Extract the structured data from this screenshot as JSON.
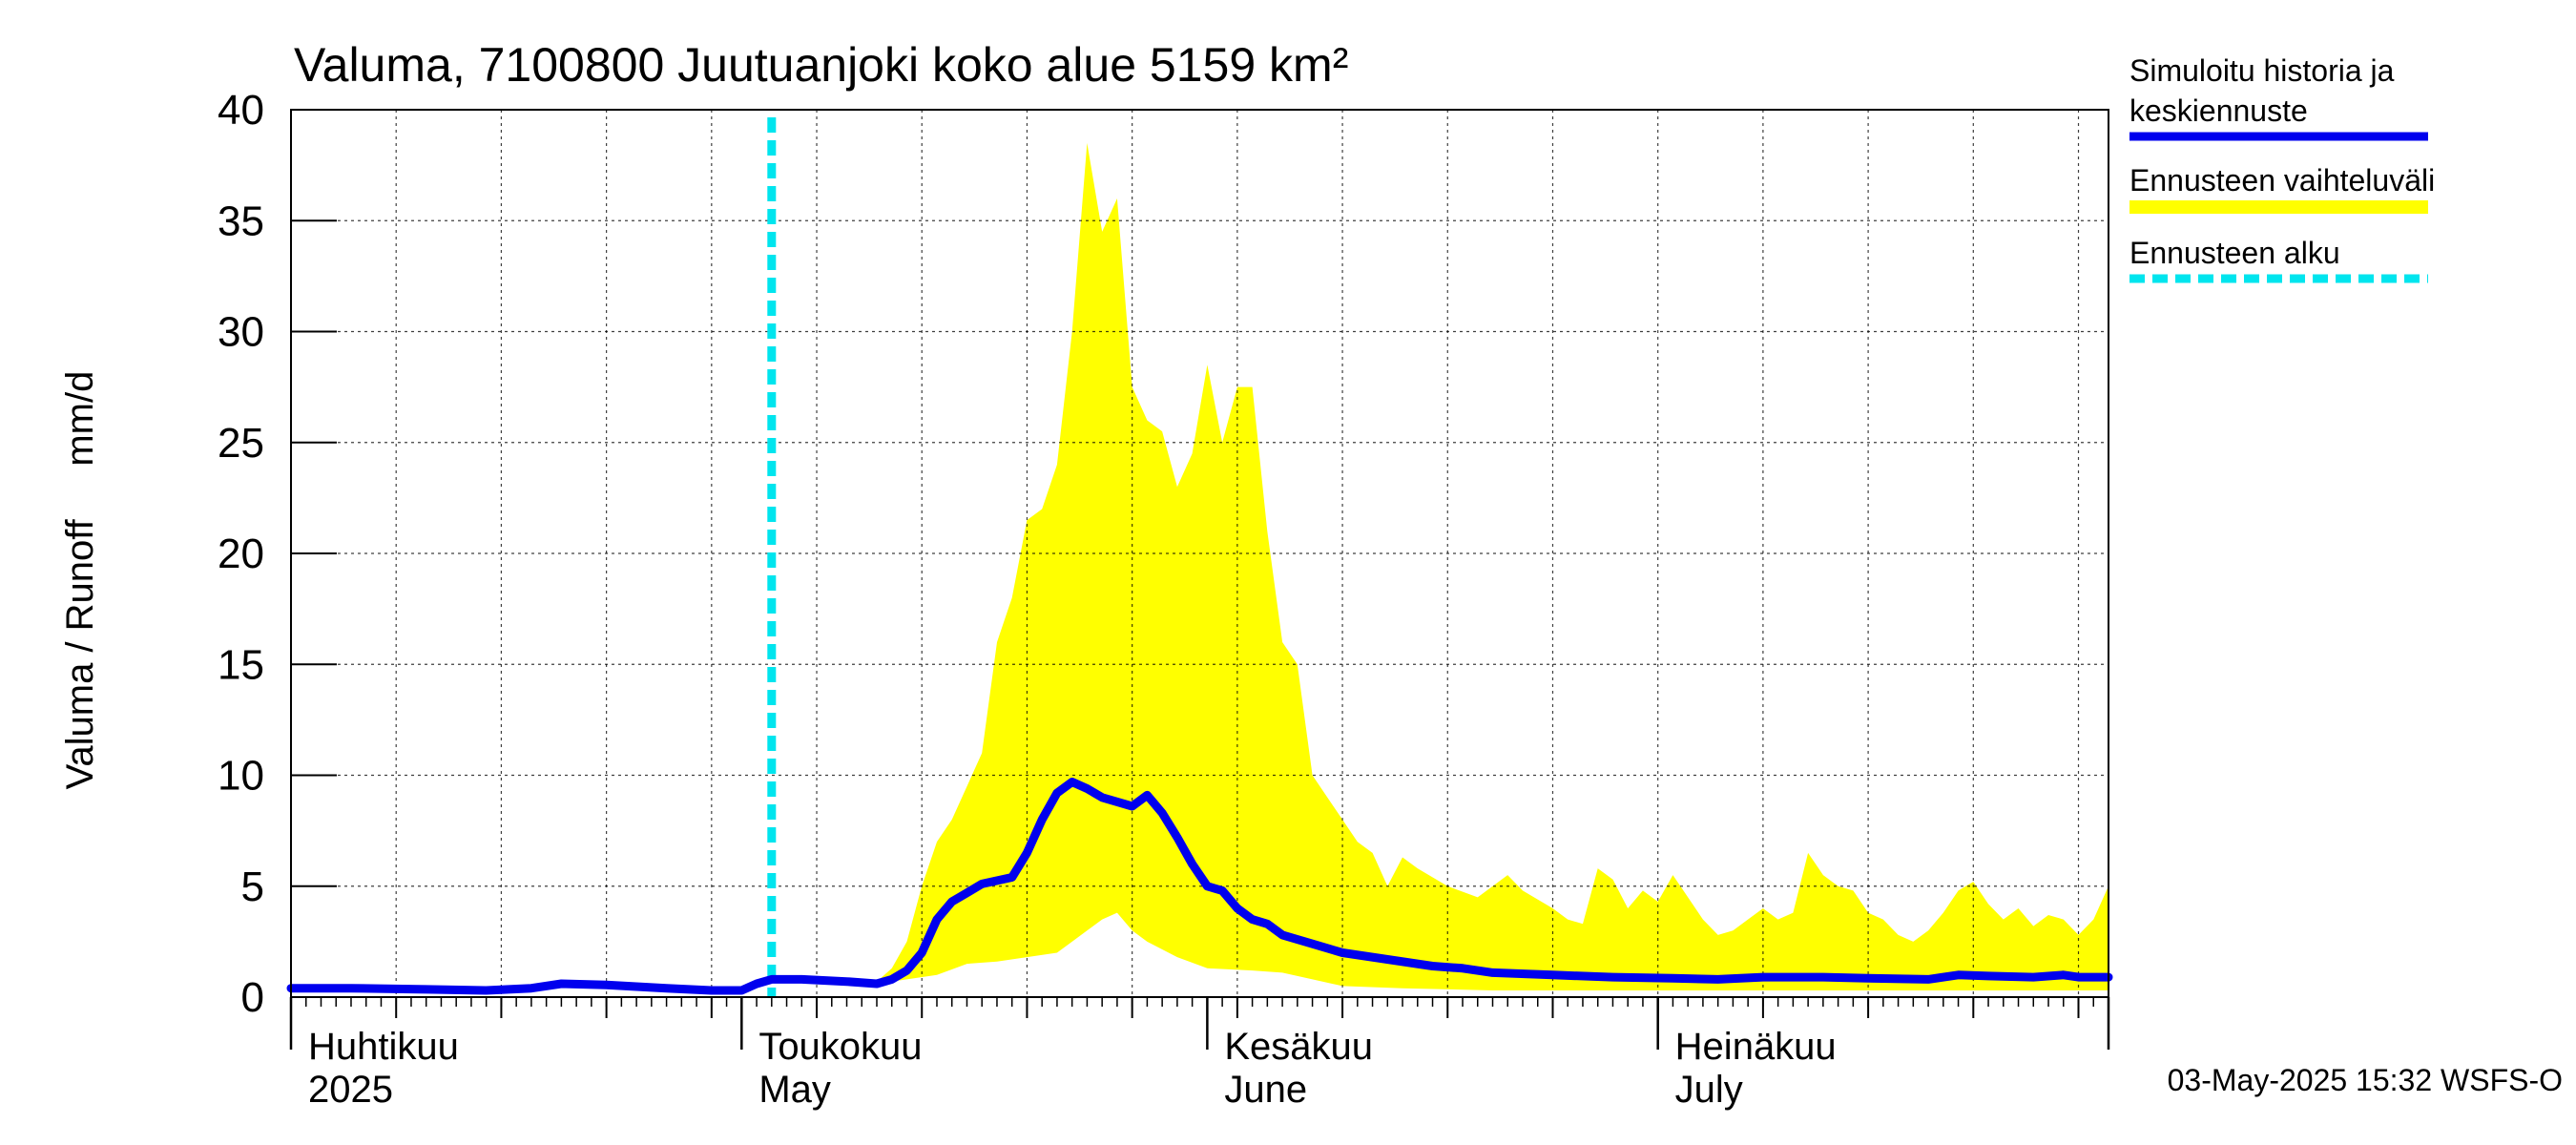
{
  "chart_data": {
    "type": "area",
    "title": "Valuma, 7100800 Juutuanjoki koko alue 5159 km²",
    "ylabel": "Valuma / Runoff     mm/d",
    "xlabel": "",
    "ylim": [
      0,
      40
    ],
    "xlim": [
      "2025-04-01",
      "2025-07-31"
    ],
    "grid": true,
    "legend_position": "right",
    "yticks": [
      0,
      5,
      10,
      15,
      20,
      25,
      30,
      35,
      40
    ],
    "month_labels": [
      {
        "date": "2025-04-01",
        "line1": "Huhtikuu",
        "line2": "2025"
      },
      {
        "date": "2025-05-01",
        "line1": "Toukokuu",
        "line2": "May"
      },
      {
        "date": "2025-06-01",
        "line1": "Kesäkuu",
        "line2": "June"
      },
      {
        "date": "2025-07-01",
        "line1": "Heinäkuu",
        "line2": "July"
      }
    ],
    "forecast_start": "2025-05-03",
    "footer": "03-May-2025 15:32 WSFS-O",
    "legend": [
      {
        "label_line1": "Simuloitu historia ja",
        "label_line2": "keskiennuste",
        "color": "#0000ee",
        "style": "solid"
      },
      {
        "label_line1": "Ennusteen vaihteluväli",
        "label_line2": "",
        "color": "#ffff00",
        "style": "band"
      },
      {
        "label_line1": "Ennusteen alku",
        "label_line2": "",
        "color": "#00e5ee",
        "style": "dashed"
      }
    ],
    "series": [
      {
        "name": "Simuloitu historia ja keskiennuste",
        "color": "#0000ee",
        "points": [
          [
            "2025-04-01",
            0.4
          ],
          [
            "2025-04-05",
            0.4
          ],
          [
            "2025-04-10",
            0.35
          ],
          [
            "2025-04-14",
            0.3
          ],
          [
            "2025-04-17",
            0.4
          ],
          [
            "2025-04-19",
            0.6
          ],
          [
            "2025-04-22",
            0.55
          ],
          [
            "2025-04-26",
            0.4
          ],
          [
            "2025-04-29",
            0.3
          ],
          [
            "2025-05-01",
            0.3
          ],
          [
            "2025-05-02",
            0.6
          ],
          [
            "2025-05-03",
            0.8
          ],
          [
            "2025-05-05",
            0.8
          ],
          [
            "2025-05-08",
            0.7
          ],
          [
            "2025-05-10",
            0.6
          ],
          [
            "2025-05-11",
            0.8
          ],
          [
            "2025-05-12",
            1.2
          ],
          [
            "2025-05-13",
            2.0
          ],
          [
            "2025-05-14",
            3.5
          ],
          [
            "2025-05-15",
            4.3
          ],
          [
            "2025-05-16",
            4.7
          ],
          [
            "2025-05-17",
            5.1
          ],
          [
            "2025-05-19",
            5.4
          ],
          [
            "2025-05-20",
            6.5
          ],
          [
            "2025-05-21",
            8.0
          ],
          [
            "2025-05-22",
            9.2
          ],
          [
            "2025-05-23",
            9.7
          ],
          [
            "2025-05-24",
            9.4
          ],
          [
            "2025-05-25",
            9.0
          ],
          [
            "2025-05-27",
            8.6
          ],
          [
            "2025-05-28",
            9.1
          ],
          [
            "2025-05-29",
            8.3
          ],
          [
            "2025-05-30",
            7.2
          ],
          [
            "2025-05-31",
            6.0
          ],
          [
            "2025-06-01",
            5.0
          ],
          [
            "2025-06-02",
            4.8
          ],
          [
            "2025-06-03",
            4.0
          ],
          [
            "2025-06-04",
            3.5
          ],
          [
            "2025-06-05",
            3.3
          ],
          [
            "2025-06-06",
            2.8
          ],
          [
            "2025-06-08",
            2.4
          ],
          [
            "2025-06-10",
            2.0
          ],
          [
            "2025-06-13",
            1.7
          ],
          [
            "2025-06-16",
            1.4
          ],
          [
            "2025-06-18",
            1.3
          ],
          [
            "2025-06-20",
            1.1
          ],
          [
            "2025-06-24",
            1.0
          ],
          [
            "2025-06-28",
            0.9
          ],
          [
            "2025-07-02",
            0.85
          ],
          [
            "2025-07-05",
            0.8
          ],
          [
            "2025-07-08",
            0.9
          ],
          [
            "2025-07-12",
            0.9
          ],
          [
            "2025-07-15",
            0.85
          ],
          [
            "2025-07-19",
            0.8
          ],
          [
            "2025-07-21",
            1.0
          ],
          [
            "2025-07-23",
            0.95
          ],
          [
            "2025-07-26",
            0.9
          ],
          [
            "2025-07-28",
            1.0
          ],
          [
            "2025-07-29",
            0.9
          ],
          [
            "2025-07-31",
            0.9
          ]
        ]
      },
      {
        "name": "Ennusteen vaihteluväli (yläraja)",
        "color": "#ffff00",
        "points": [
          [
            "2025-05-03",
            0.8
          ],
          [
            "2025-05-06",
            0.8
          ],
          [
            "2025-05-08",
            0.75
          ],
          [
            "2025-05-10",
            0.7
          ],
          [
            "2025-05-11",
            1.3
          ],
          [
            "2025-05-12",
            2.5
          ],
          [
            "2025-05-13",
            5.0
          ],
          [
            "2025-05-14",
            7.0
          ],
          [
            "2025-05-15",
            8.0
          ],
          [
            "2025-05-16",
            9.5
          ],
          [
            "2025-05-17",
            11.0
          ],
          [
            "2025-05-18",
            16.0
          ],
          [
            "2025-05-19",
            18.0
          ],
          [
            "2025-05-20",
            21.5
          ],
          [
            "2025-05-21",
            22.0
          ],
          [
            "2025-05-22",
            24.0
          ],
          [
            "2025-05-23",
            30.0
          ],
          [
            "2025-05-24",
            38.5
          ],
          [
            "2025-05-25",
            34.5
          ],
          [
            "2025-05-26",
            36.0
          ],
          [
            "2025-05-27",
            27.5
          ],
          [
            "2025-05-28",
            26.0
          ],
          [
            "2025-05-29",
            25.5
          ],
          [
            "2025-05-30",
            23.0
          ],
          [
            "2025-05-31",
            24.5
          ],
          [
            "2025-06-01",
            28.5
          ],
          [
            "2025-06-02",
            25.0
          ],
          [
            "2025-06-03",
            27.5
          ],
          [
            "2025-06-04",
            27.5
          ],
          [
            "2025-06-05",
            21.0
          ],
          [
            "2025-06-06",
            16.0
          ],
          [
            "2025-06-07",
            15.0
          ],
          [
            "2025-06-08",
            10.0
          ],
          [
            "2025-06-09",
            9.0
          ],
          [
            "2025-06-10",
            8.0
          ],
          [
            "2025-06-11",
            7.0
          ],
          [
            "2025-06-12",
            6.5
          ],
          [
            "2025-06-13",
            5.0
          ],
          [
            "2025-06-14",
            6.3
          ],
          [
            "2025-06-15",
            5.8
          ],
          [
            "2025-06-17",
            5.0
          ],
          [
            "2025-06-19",
            4.5
          ],
          [
            "2025-06-20",
            5.0
          ],
          [
            "2025-06-21",
            5.5
          ],
          [
            "2025-06-22",
            4.8
          ],
          [
            "2025-06-24",
            4.0
          ],
          [
            "2025-06-25",
            3.5
          ],
          [
            "2025-06-26",
            3.3
          ],
          [
            "2025-06-27",
            5.8
          ],
          [
            "2025-06-28",
            5.3
          ],
          [
            "2025-06-29",
            4.0
          ],
          [
            "2025-06-30",
            4.8
          ],
          [
            "2025-07-01",
            4.3
          ],
          [
            "2025-07-02",
            5.5
          ],
          [
            "2025-07-03",
            4.5
          ],
          [
            "2025-07-04",
            3.5
          ],
          [
            "2025-07-05",
            2.8
          ],
          [
            "2025-07-06",
            3.0
          ],
          [
            "2025-07-07",
            3.5
          ],
          [
            "2025-07-08",
            4.0
          ],
          [
            "2025-07-09",
            3.5
          ],
          [
            "2025-07-10",
            3.8
          ],
          [
            "2025-07-11",
            6.5
          ],
          [
            "2025-07-12",
            5.5
          ],
          [
            "2025-07-13",
            5.0
          ],
          [
            "2025-07-14",
            4.8
          ],
          [
            "2025-07-15",
            3.8
          ],
          [
            "2025-07-16",
            3.5
          ],
          [
            "2025-07-17",
            2.8
          ],
          [
            "2025-07-18",
            2.5
          ],
          [
            "2025-07-19",
            3.0
          ],
          [
            "2025-07-20",
            3.8
          ],
          [
            "2025-07-21",
            4.8
          ],
          [
            "2025-07-22",
            5.2
          ],
          [
            "2025-07-23",
            4.2
          ],
          [
            "2025-07-24",
            3.5
          ],
          [
            "2025-07-25",
            4.0
          ],
          [
            "2025-07-26",
            3.2
          ],
          [
            "2025-07-27",
            3.7
          ],
          [
            "2025-07-28",
            3.5
          ],
          [
            "2025-07-29",
            2.8
          ],
          [
            "2025-07-30",
            3.5
          ],
          [
            "2025-07-31",
            5.0
          ]
        ]
      },
      {
        "name": "Ennusteen vaihteluväli (alaraja)",
        "color": "#ffff00",
        "points": [
          [
            "2025-05-03",
            0.8
          ],
          [
            "2025-05-06",
            0.8
          ],
          [
            "2025-05-08",
            0.7
          ],
          [
            "2025-05-10",
            0.6
          ],
          [
            "2025-05-12",
            0.8
          ],
          [
            "2025-05-14",
            1.0
          ],
          [
            "2025-05-16",
            1.5
          ],
          [
            "2025-05-18",
            1.6
          ],
          [
            "2025-05-20",
            1.8
          ],
          [
            "2025-05-22",
            2.0
          ],
          [
            "2025-05-23",
            2.5
          ],
          [
            "2025-05-24",
            3.0
          ],
          [
            "2025-05-25",
            3.5
          ],
          [
            "2025-05-26",
            3.8
          ],
          [
            "2025-05-27",
            3.0
          ],
          [
            "2025-05-28",
            2.5
          ],
          [
            "2025-05-30",
            1.8
          ],
          [
            "2025-06-01",
            1.3
          ],
          [
            "2025-06-04",
            1.2
          ],
          [
            "2025-06-06",
            1.1
          ],
          [
            "2025-06-08",
            0.8
          ],
          [
            "2025-06-10",
            0.5
          ],
          [
            "2025-06-14",
            0.4
          ],
          [
            "2025-06-20",
            0.3
          ],
          [
            "2025-07-01",
            0.3
          ],
          [
            "2025-07-15",
            0.3
          ],
          [
            "2025-07-31",
            0.3
          ]
        ]
      }
    ]
  }
}
